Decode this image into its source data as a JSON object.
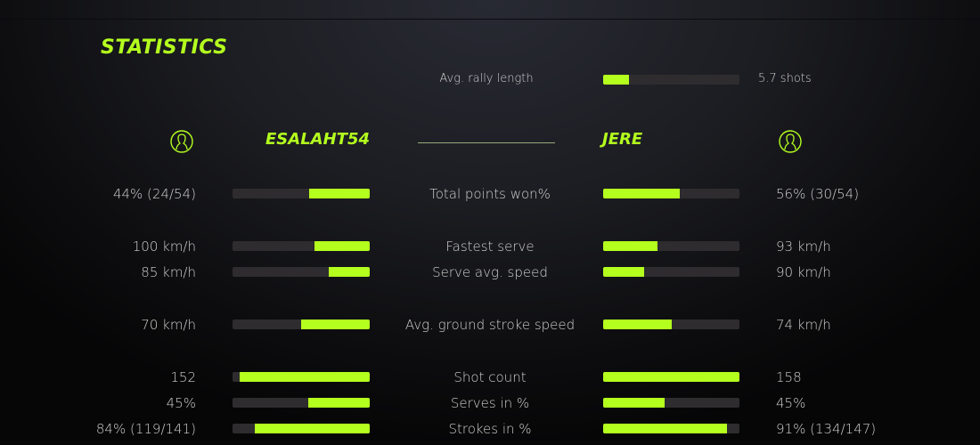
{
  "title": "STATISTICS",
  "accent": "#b4ff1e",
  "rally": {
    "label": "Avg. rally length",
    "value": "5.7 shots",
    "fill": 19
  },
  "players": {
    "left": {
      "name": "ESALAHT54",
      "icon": "user-icon"
    },
    "right": {
      "name": "JERE",
      "icon": "user-icon"
    }
  },
  "stats": [
    {
      "label": "Total points won%",
      "left": "44% (24/54)",
      "right": "56% (30/54)",
      "left_fill": 44,
      "right_fill": 56
    },
    {
      "label": "Fastest serve",
      "left": "100 km/h",
      "right": "93 km/h",
      "left_fill": 40,
      "right_fill": 40
    },
    {
      "label": "Serve avg. speed",
      "left": "85 km/h",
      "right": "90 km/h",
      "left_fill": 30,
      "right_fill": 30
    },
    {
      "label": "Avg. ground stroke speed",
      "left": "70 km/h",
      "right": "74 km/h",
      "left_fill": 50,
      "right_fill": 50
    },
    {
      "label": "Shot count",
      "left": "152",
      "right": "158",
      "left_fill": 95,
      "right_fill": 100
    },
    {
      "label": "Serves in %",
      "left": "45%",
      "right": "45%",
      "left_fill": 45,
      "right_fill": 45
    },
    {
      "label": "Strokes in %",
      "left": "84% (119/141)",
      "right": "91% (134/147)",
      "left_fill": 84,
      "right_fill": 91
    }
  ]
}
